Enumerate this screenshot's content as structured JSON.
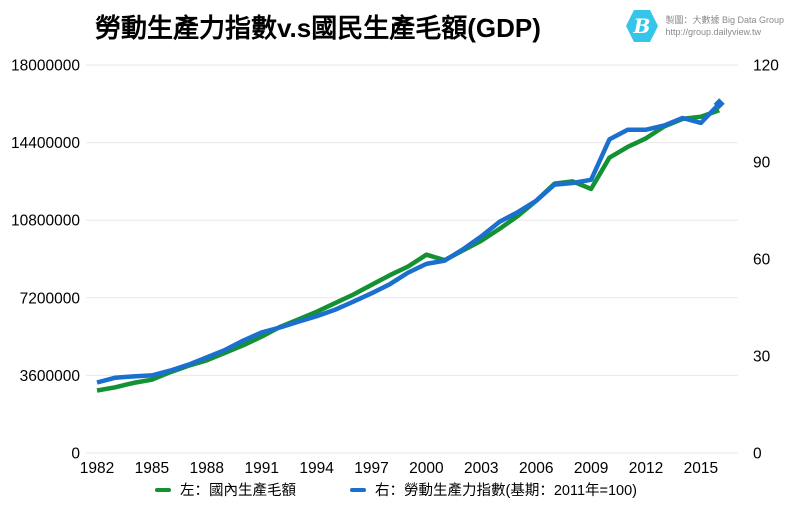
{
  "page": {
    "title": "勞動生產力指數v.s國民生產毛額(GDP)"
  },
  "logo": {
    "line1": "製圖：大數據 Big Data Group",
    "line2": "http://group.dailyview.tw",
    "mark_color": "#35c5ea",
    "mark_letter": "B"
  },
  "legend": {
    "items": [
      {
        "label": "左：國內生產毛額",
        "color": "#149132"
      },
      {
        "label": "右：勞動生產力指數(基期：2011年=100)",
        "color": "#1b6fcf"
      }
    ]
  },
  "chart_data": {
    "type": "line",
    "title": "勞動生產力指數v.s國民生產毛額(GDP)",
    "grid": "horizontal",
    "grid_color": "#e8e8e8",
    "x": [
      1982,
      1983,
      1984,
      1985,
      1986,
      1987,
      1988,
      1989,
      1990,
      1991,
      1992,
      1993,
      1994,
      1995,
      1996,
      1997,
      1998,
      1999,
      2000,
      2001,
      2002,
      2003,
      2004,
      2005,
      2006,
      2007,
      2008,
      2009,
      2010,
      2011,
      2012,
      2013,
      2014,
      2015,
      2016
    ],
    "x_tick_labels": [
      "1982",
      "1985",
      "1988",
      "1991",
      "1994",
      "1997",
      "2000",
      "2003",
      "2006",
      "2009",
      "2012",
      "2015"
    ],
    "left_axis": {
      "ticks": [
        0,
        3600000,
        7200000,
        10800000,
        14400000,
        18000000
      ],
      "range": [
        0,
        18000000
      ]
    },
    "right_axis": {
      "ticks": [
        0,
        30,
        60,
        90,
        120
      ],
      "range": [
        0,
        120
      ]
    },
    "series": [
      {
        "name": "左：國內生產毛額",
        "axis": "left",
        "color": "#149132",
        "values": [
          2900000,
          3050000,
          3250000,
          3400000,
          3750000,
          4050000,
          4300000,
          4650000,
          5000000,
          5400000,
          5850000,
          6200000,
          6550000,
          6950000,
          7350000,
          7800000,
          8250000,
          8650000,
          9200000,
          8950000,
          9400000,
          9850000,
          10400000,
          11000000,
          11700000,
          12500000,
          12600000,
          12250000,
          13700000,
          14200000,
          14600000,
          15150000,
          15500000,
          15600000,
          15900000
        ]
      },
      {
        "name": "右：勞動生產力指數(基期：2011年=100)",
        "axis": "right",
        "color": "#1b6fcf",
        "end_marker": "diamond",
        "values": [
          21.8,
          23.3,
          23.7,
          24.0,
          25.5,
          27.3,
          29.6,
          31.9,
          34.8,
          37.3,
          38.8,
          40.6,
          42.3,
          44.3,
          46.8,
          49.4,
          52.2,
          55.8,
          58.5,
          59.5,
          63.0,
          67.0,
          71.5,
          74.5,
          78.0,
          83.0,
          83.5,
          84.5,
          97.0,
          100.0,
          100.0,
          101.3,
          103.6,
          102.1,
          108.0
        ]
      }
    ]
  }
}
